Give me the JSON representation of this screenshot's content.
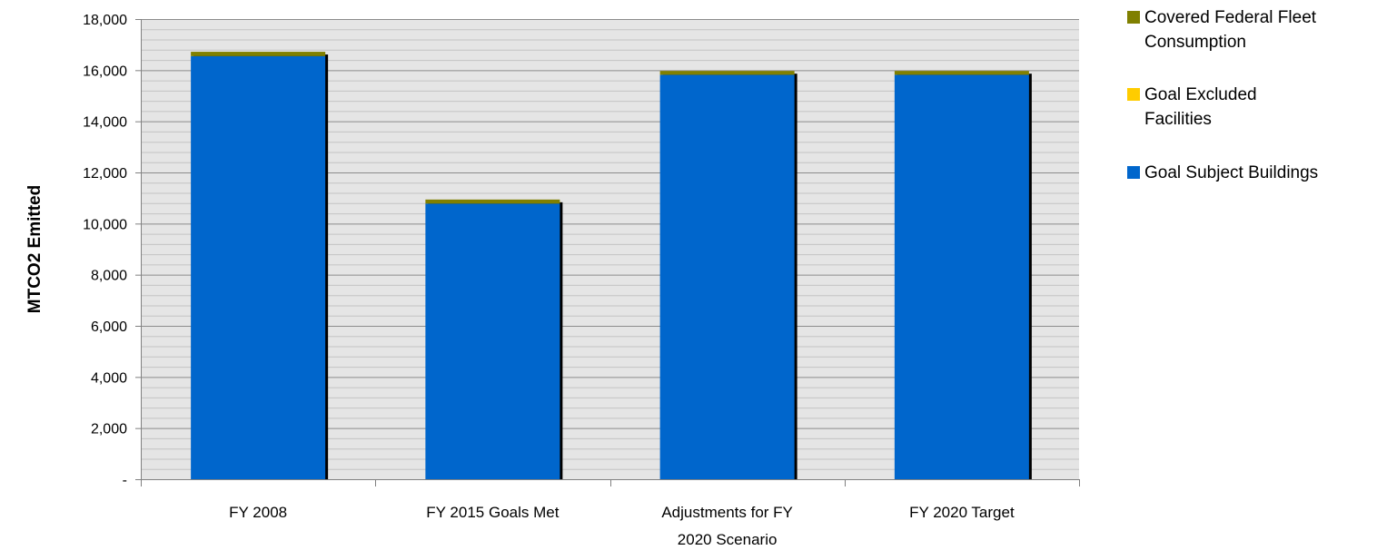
{
  "chart_data": {
    "type": "bar",
    "stacked": true,
    "title": "",
    "xlabel": "",
    "ylabel": "MTCO2 Emitted",
    "ylim": [
      0,
      18000
    ],
    "yticks": [
      0,
      2000,
      4000,
      6000,
      8000,
      10000,
      12000,
      14000,
      16000,
      18000
    ],
    "ytick_labels": [
      "-",
      "2,000",
      "4,000",
      "6,000",
      "8,000",
      "10,000",
      "12,000",
      "14,000",
      "16,000",
      "18,000"
    ],
    "categories": [
      "FY 2008",
      "FY 2015 Goals Met",
      "Adjustments for FY 2020 Scenario",
      "FY 2020 Target"
    ],
    "series": [
      {
        "name": "Goal Subject Buildings",
        "color": "#0066CC",
        "values": [
          16550,
          10780,
          15820,
          15820
        ]
      },
      {
        "name": "Goal Excluded Facilities",
        "color": "#FFCC00",
        "values": [
          0,
          0,
          0,
          0
        ]
      },
      {
        "name": "Covered Federal Fleet Consumption",
        "color": "#808000",
        "values": [
          170,
          160,
          150,
          150
        ]
      }
    ],
    "legend_order": [
      2,
      1,
      0
    ],
    "legend_position": "top-right",
    "grid": true,
    "plot_background": "#E5E5E5"
  }
}
